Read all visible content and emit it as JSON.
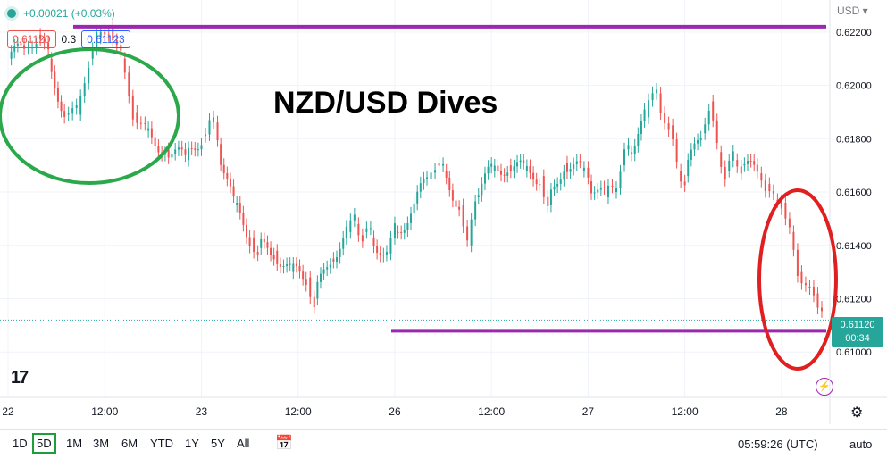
{
  "header": {
    "change": "+0.00021 (+0.03%)",
    "sell_price": "0.61120",
    "spread": "0.3",
    "buy_price": "0.61123",
    "currency": "USD"
  },
  "annotation_title": "NZD/USD Dives",
  "price_label": {
    "price": "0.61120",
    "countdown": "00:34"
  },
  "toolbar": {
    "ranges": [
      "1D",
      "5D",
      "1M",
      "3M",
      "6M",
      "YTD",
      "1Y",
      "5Y",
      "All"
    ],
    "active_range": "5D",
    "clock": "05:59:26 (UTC)",
    "auto_label": "auto"
  },
  "colors": {
    "up": "#26a69a",
    "down": "#ef5350",
    "resistance": "#9c27b0",
    "circle_green": "#2aa84a",
    "circle_red": "#e02020"
  },
  "chart_data": {
    "type": "line",
    "ylim": [
      0.6083,
      0.6232
    ],
    "y_ticks": [
      {
        "value": 0.622,
        "label": "0.62200"
      },
      {
        "value": 0.62,
        "label": "0.62000"
      },
      {
        "value": 0.618,
        "label": "0.61800"
      },
      {
        "value": 0.616,
        "label": "0.61600"
      },
      {
        "value": 0.614,
        "label": "0.61400"
      },
      {
        "value": 0.612,
        "label": "0.61200"
      },
      {
        "value": 0.61,
        "label": "0.61000"
      }
    ],
    "x_ticks": [
      {
        "t": 0,
        "label": "22"
      },
      {
        "t": 12,
        "label": "12:00"
      },
      {
        "t": 24,
        "label": "23"
      },
      {
        "t": 36,
        "label": "12:00"
      },
      {
        "t": 48,
        "label": "26"
      },
      {
        "t": 60,
        "label": "12:00"
      },
      {
        "t": 72,
        "label": "27"
      },
      {
        "t": 84,
        "label": "12:00"
      },
      {
        "t": 96,
        "label": "28"
      }
    ],
    "x_range": [
      -1,
      102
    ],
    "series": [
      {
        "t": [
          0,
          2,
          3.5,
          5,
          7,
          8.5,
          10,
          11,
          12.5,
          14,
          15.5,
          17,
          19.5,
          22,
          24,
          25,
          26,
          28,
          30,
          31,
          33,
          35,
          37,
          38,
          40,
          42,
          43,
          44,
          45,
          47,
          48,
          50,
          52,
          53,
          54,
          56,
          57,
          58,
          60,
          62,
          64,
          66,
          67,
          69,
          71,
          72,
          74,
          75,
          76,
          77,
          79,
          80.5,
          82,
          83,
          84,
          86,
          87,
          88,
          89,
          90,
          91,
          93,
          94,
          95,
          96,
          97,
          98,
          99,
          100,
          101
        ],
        "close": [
          0.621,
          0.6214,
          0.6219,
          0.621,
          0.6189,
          0.6189,
          0.621,
          0.6218,
          0.6222,
          0.621,
          0.619,
          0.6183,
          0.6176,
          0.6172,
          0.6181,
          0.6188,
          0.6178,
          0.6155,
          0.6143,
          0.6139,
          0.6138,
          0.613,
          0.6128,
          0.612,
          0.6135,
          0.6145,
          0.6148,
          0.6145,
          0.6143,
          0.6137,
          0.6145,
          0.6152,
          0.6165,
          0.6171,
          0.6168,
          0.6155,
          0.614,
          0.6158,
          0.6168,
          0.617,
          0.6168,
          0.6166,
          0.6155,
          0.6171,
          0.6168,
          0.6164,
          0.6158,
          0.616,
          0.617,
          0.6175,
          0.6188,
          0.6197,
          0.6185,
          0.6168,
          0.6166,
          0.6182,
          0.6194,
          0.6175,
          0.6168,
          0.6172,
          0.617,
          0.6167,
          0.6163,
          0.6157,
          0.6156,
          0.6145,
          0.613,
          0.6124,
          0.6122,
          0.6115
        ]
      }
    ],
    "overlays": {
      "resistance_level": 0.6222,
      "support_level": 0.6108
    }
  }
}
